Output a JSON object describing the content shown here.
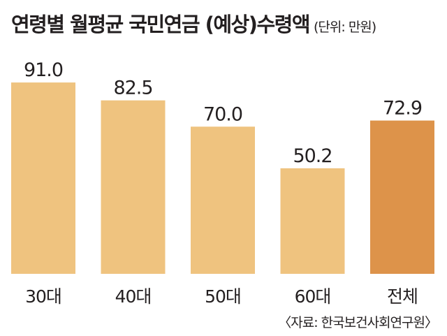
{
  "header": {
    "title": "연령별 월평균 국민연금 (예상)수령액",
    "unit": "(단위: 만원)"
  },
  "source": "〈자료: 한국보건사회연구원〉",
  "colors": {
    "bar": "#efc37f",
    "highlight": "#dd934a",
    "text": "#231f20"
  },
  "chart_data": {
    "type": "bar",
    "title": "연령별 월평균 국민연금 (예상)수령액",
    "unit": "(단위: 만원)",
    "categories": [
      "30대",
      "40대",
      "50대",
      "60대",
      "전체"
    ],
    "values": [
      91.0,
      82.5,
      70.0,
      50.2,
      72.9
    ],
    "value_labels": [
      "91.0",
      "82.5",
      "70.0",
      "50.2",
      "72.9"
    ],
    "highlight_index": 4,
    "ylim": [
      0,
      100
    ],
    "grid": false,
    "legend": "none"
  }
}
